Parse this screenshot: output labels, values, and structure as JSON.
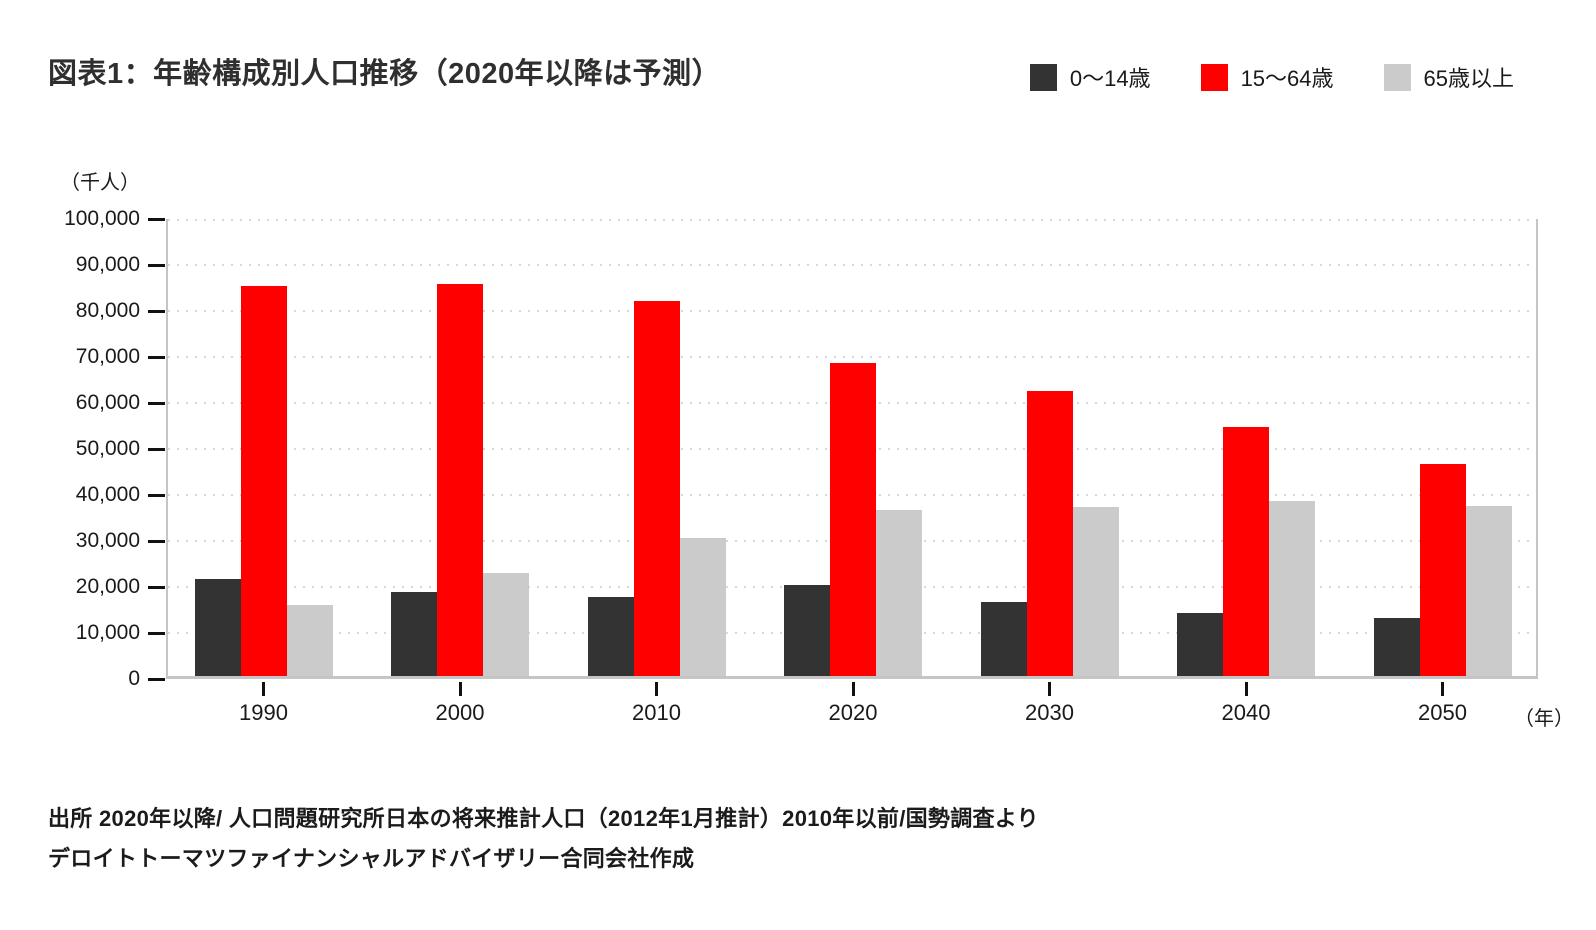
{
  "title": "図表1：年齢構成別人口推移（2020年以降は予測）",
  "y_axis_unit": "（千人）",
  "x_axis_unit": "（年）",
  "source": {
    "line1": "出所 2020年以降/ 人口問題研究所日本の将来推計人口（2012年1月推計）2010年以前/国勢調査より",
    "line2": "デロイトトーマツファイナンシャルアドバイザリー合同会社作成"
  },
  "colors": {
    "series_0_14": "#333333",
    "series_15_64": "#fe0000",
    "series_65_plus": "#cbcbcb",
    "axis_line": "#c5c5c5",
    "gridline": "#d7d7d7",
    "tick": "#111111",
    "text": "#1a1a1a"
  },
  "chart_data": {
    "type": "bar",
    "title": "図表1：年齢構成別人口推移（2020年以降は予測）",
    "categories": [
      "1990",
      "2000",
      "2010",
      "2020",
      "2030",
      "2040",
      "2050"
    ],
    "series": [
      {
        "name": "0〜14歳",
        "color": "#333333",
        "values": [
          21100,
          18300,
          17200,
          19800,
          16000,
          13800,
          12500
        ]
      },
      {
        "name": "15〜64歳",
        "color": "#fe0000",
        "values": [
          84800,
          85200,
          81500,
          68100,
          62000,
          54200,
          46000
        ]
      },
      {
        "name": "65歳以上",
        "color": "#cbcbcb",
        "values": [
          15400,
          22400,
          29900,
          36000,
          36800,
          38100,
          36900
        ]
      }
    ],
    "xlabel": "（年）",
    "ylabel": "（千人）",
    "ylim": [
      0,
      100000
    ],
    "ytick_step": 10000,
    "grid": "horizontal-dotted",
    "legend_position": "top-right",
    "note": "2020年以降は予測"
  }
}
